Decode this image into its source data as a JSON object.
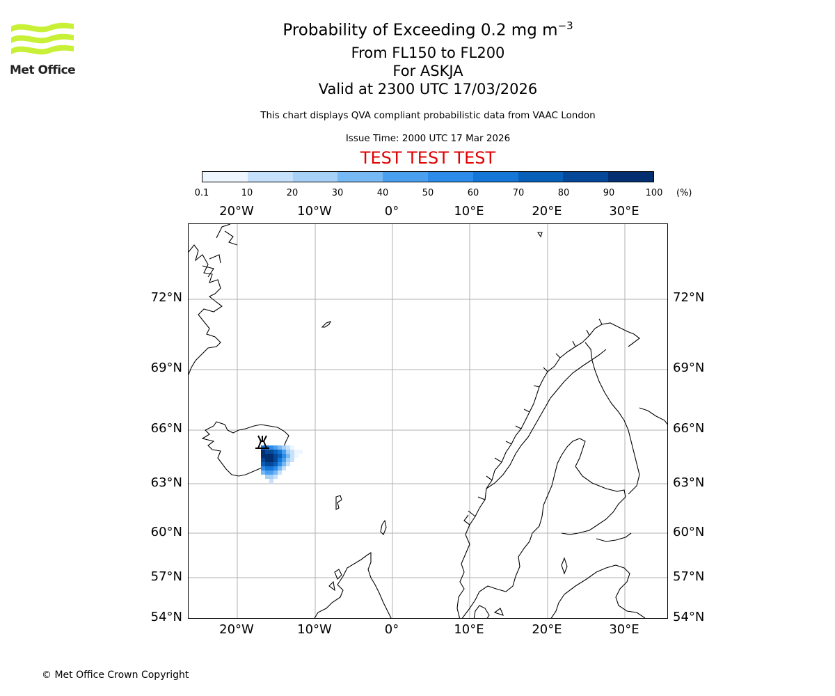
{
  "logo": {
    "text": "Met Office",
    "icon": "met-office-wave-icon",
    "color": "#c8f036"
  },
  "title": {
    "line1": "Probability of Exceeding 0.2 mg m",
    "line1_superscript": "−3",
    "line2": "From FL150 to FL200",
    "line3": "For ASKJA",
    "line4": "Valid at 2300 UTC 17/03/2026"
  },
  "subtitle": "This chart displays QVA compliant probabilistic data from VAAC London",
  "issue_time": "Issue Time: 2000 UTC 17 Mar 2026",
  "test_banner": "TEST TEST TEST",
  "colorbar": {
    "ticks": [
      "0.1",
      "10",
      "20",
      "30",
      "40",
      "50",
      "60",
      "70",
      "80",
      "90",
      "100"
    ],
    "units": "(%)",
    "colors": [
      "#eef6ff",
      "#c6e1fb",
      "#a7d0f7",
      "#77b9f4",
      "#4aa0ef",
      "#2d8ce9",
      "#1476d6",
      "#085fb8",
      "#05489a",
      "#032f70"
    ]
  },
  "map": {
    "lon_labels": [
      "20°W",
      "10°W",
      "0°",
      "10°E",
      "20°E",
      "30°E"
    ],
    "lat_labels": [
      "72°N",
      "69°N",
      "66°N",
      "63°N",
      "60°N",
      "57°N",
      "54°N"
    ],
    "volcano": {
      "name": "ASKJA",
      "icon": "volcano-icon"
    }
  },
  "copyright": "© Met Office Crown Copyright"
}
